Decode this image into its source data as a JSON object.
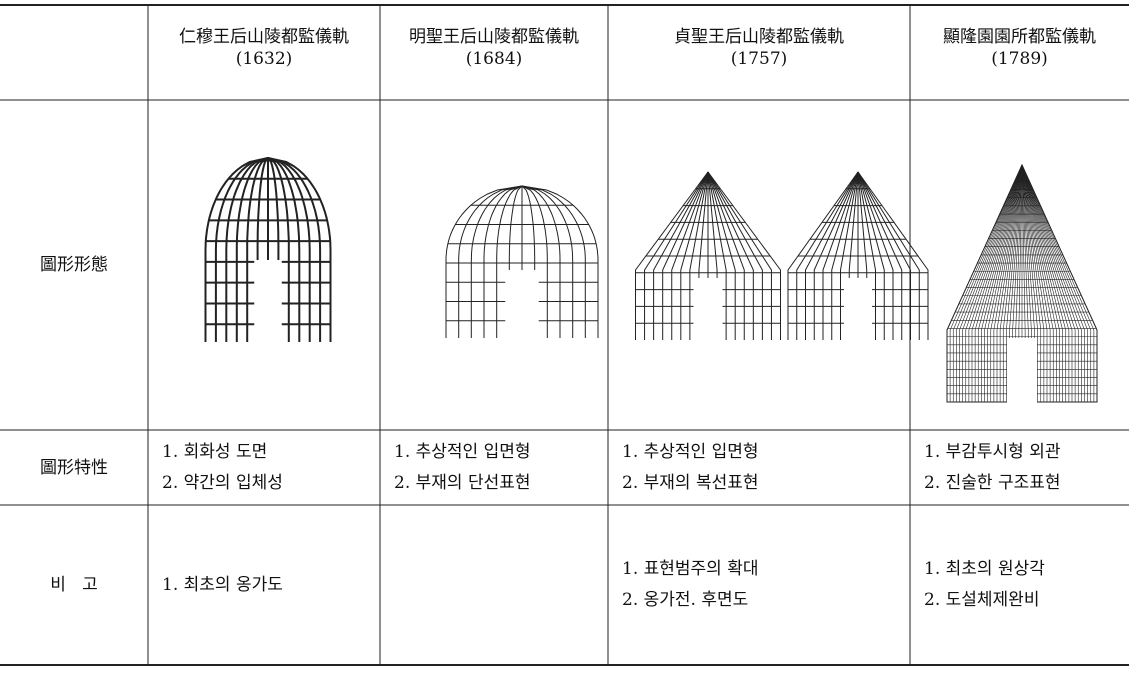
{
  "table": {
    "columns": [
      {
        "title": "仁穆王后山陵都監儀軌",
        "year": "(1632)"
      },
      {
        "title": "明聖王后山陵都監儀軌",
        "year": "(1684)"
      },
      {
        "title": "貞聖王后山陵都監儀軌",
        "year": "(1757)"
      },
      {
        "title": "顯隆園園所都監儀軌",
        "year": "(1789)"
      }
    ],
    "rows": [
      {
        "label": "圖形形態"
      },
      {
        "label": "圖形特性",
        "cells": [
          [
            "1. 회화성 도면",
            "2. 약간의 입체성"
          ],
          [
            "1. 추상적인 입면형",
            "2. 부재의 단선표현"
          ],
          [
            "1. 추상적인 입면형",
            "2. 부재의 복선표현"
          ],
          [
            "1. 부감투시형 외관",
            "2. 진술한 구조표현"
          ]
        ]
      },
      {
        "label": "비   고",
        "cells": [
          [
            "1. 최초의 옹가도"
          ],
          [],
          [
            "1. 표현범주의 확대",
            "2. 옹가전. 후면도"
          ],
          [
            "1. 최초의 원상각",
            "2. 도설체제완비"
          ]
        ]
      }
    ]
  }
}
